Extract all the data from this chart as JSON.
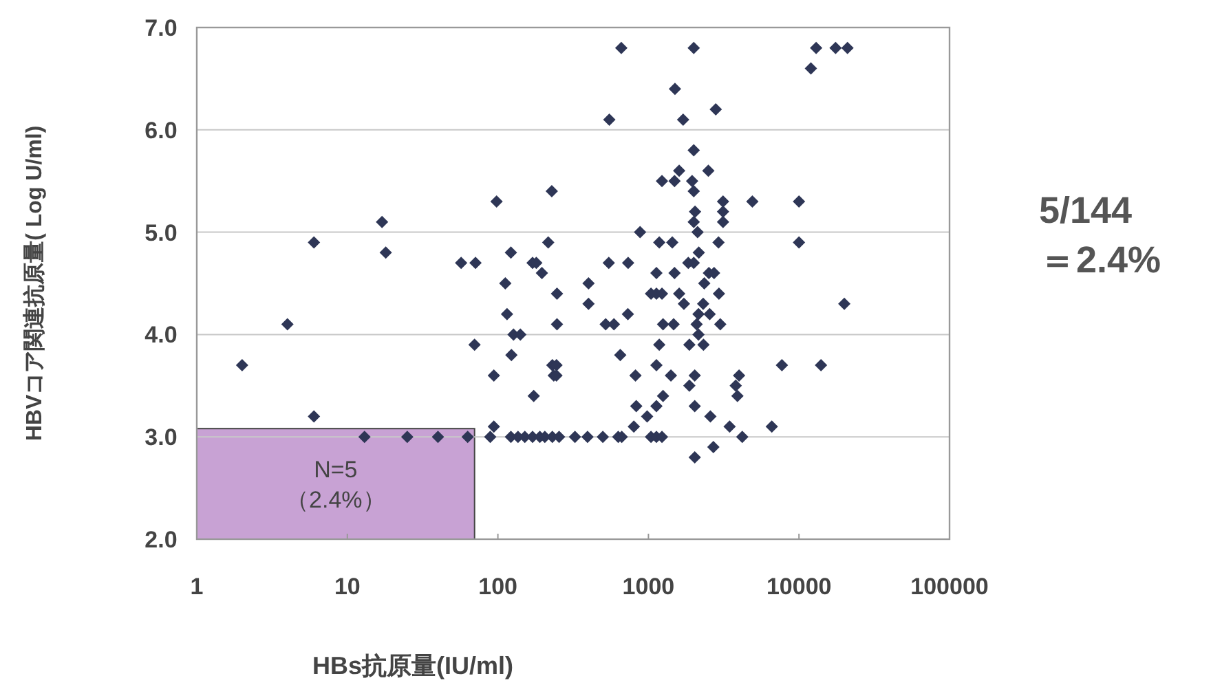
{
  "chart_data": {
    "type": "scatter",
    "xlabel": "HBs抗原量(IU/ml)",
    "ylabel": "HBVコア関連抗原量( Log U/ml)",
    "annotations": [
      "5/144",
      "＝2.4%"
    ],
    "log": "x",
    "grid": "y",
    "marker": "diamond",
    "xlim": [
      1,
      100000
    ],
    "xticks": [
      1,
      10,
      100,
      1000,
      10000,
      100000
    ],
    "ylim": [
      2,
      7
    ],
    "yticks": [
      {
        "value": 2,
        "label": "2.0"
      },
      {
        "value": 3,
        "label": "3.0"
      },
      {
        "value": 4,
        "label": "4.0"
      },
      {
        "value": 5,
        "label": "5.0"
      },
      {
        "value": 6,
        "label": "6.0"
      },
      {
        "value": 7,
        "label": "7.0"
      }
    ],
    "bands": [
      {
        "axis": "x",
        "from": 1,
        "to": 70,
        "label": "N=5\n（2.4%）",
        "color": "#c8a2d4"
      }
    ],
    "series": [
      {
        "color": "#2e3656",
        "x": [
          2,
          4,
          6,
          6,
          17,
          18,
          13,
          25,
          40,
          63,
          57,
          71,
          70,
          89,
          94,
          94,
          98,
          112,
          115,
          122,
          123,
          127,
          141,
          122,
          136,
          151,
          170,
          180,
          196,
          173,
          170,
          190,
          205,
          230,
          255,
          228,
          216,
          247,
          247,
          230,
          245,
          235,
          245,
          660,
          2000,
          13000,
          17500,
          21000,
          12000,
          1500,
          2800,
          550,
          1700,
          2000,
          1600,
          2500,
          1230,
          1490,
          1950,
          2000,
          2040,
          2000,
          2120,
          3130,
          3130,
          3130,
          4900,
          10000,
          10000,
          880,
          1180,
          1440,
          2920,
          2160,
          545,
          733,
          1840,
          2000,
          1130,
          1490,
          2520,
          2730,
          2350,
          400,
          400,
          520,
          590,
          730,
          1040,
          1130,
          1230,
          1600,
          1720,
          2940,
          2310,
          2150,
          2550,
          1250,
          1470,
          2090,
          3000,
          2150,
          1180,
          1870,
          2320,
          20000,
          650,
          1130,
          820,
          1410,
          2030,
          1870,
          4000,
          3800,
          3900,
          7700,
          14000,
          1250,
          830,
          1130,
          980,
          2030,
          2580,
          800,
          3460,
          6600,
          4200,
          325,
          394,
          498,
          630,
          665,
          1040,
          1130,
          1230,
          2030,
          2700
        ],
        "values": [
          3.7,
          4.1,
          4.9,
          3.2,
          5.1,
          4.8,
          3.0,
          3.0,
          3.0,
          3.0,
          4.7,
          4.7,
          3.9,
          3.0,
          3.1,
          3.6,
          5.3,
          4.5,
          4.2,
          4.8,
          3.8,
          4.0,
          4.0,
          3.0,
          3.0,
          3.0,
          4.7,
          4.7,
          4.6,
          3.4,
          3.0,
          3.0,
          3.0,
          3.0,
          3.0,
          5.4,
          4.9,
          4.4,
          4.1,
          3.7,
          3.7,
          3.6,
          3.6,
          6.8,
          6.8,
          6.8,
          6.8,
          6.8,
          6.6,
          6.4,
          6.2,
          6.1,
          6.1,
          5.8,
          5.6,
          5.6,
          5.5,
          5.5,
          5.5,
          5.4,
          5.2,
          5.1,
          5.0,
          5.3,
          5.2,
          5.1,
          5.3,
          5.3,
          4.9,
          5.0,
          4.9,
          4.9,
          4.9,
          4.8,
          4.7,
          4.7,
          4.7,
          4.7,
          4.6,
          4.6,
          4.6,
          4.6,
          4.5,
          4.5,
          4.3,
          4.1,
          4.1,
          4.2,
          4.4,
          4.4,
          4.4,
          4.4,
          4.3,
          4.4,
          4.3,
          4.2,
          4.2,
          4.1,
          4.1,
          4.1,
          4.1,
          4.0,
          3.9,
          3.9,
          3.9,
          4.3,
          3.8,
          3.7,
          3.6,
          3.6,
          3.6,
          3.5,
          3.6,
          3.5,
          3.4,
          3.7,
          3.7,
          3.4,
          3.3,
          3.3,
          3.2,
          3.3,
          3.2,
          3.1,
          3.1,
          3.1,
          3.0,
          3.0,
          3.0,
          3.0,
          3.0,
          3.0,
          3.0,
          3.0,
          3.0,
          2.8,
          2.9
        ]
      }
    ]
  }
}
